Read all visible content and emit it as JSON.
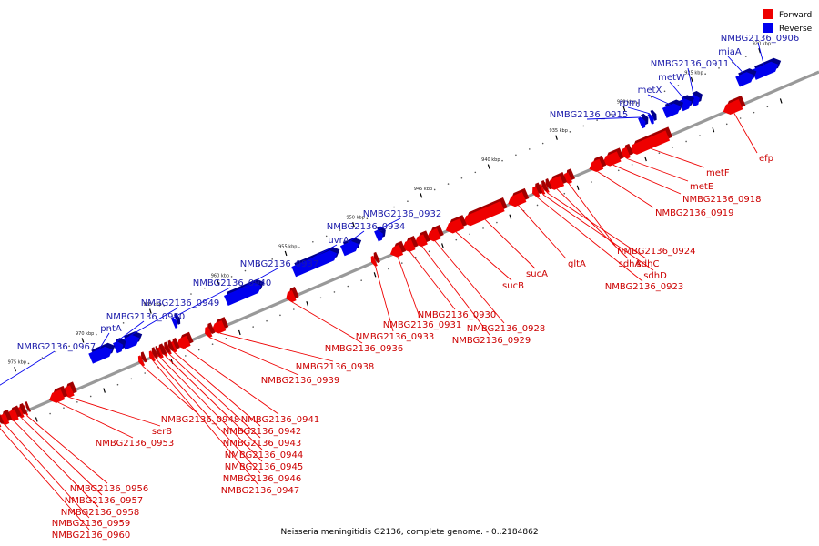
{
  "legend": [
    {
      "label": "Forward",
      "color": "#ee0000"
    },
    {
      "label": "Reverse",
      "color": "#0000ee"
    }
  ],
  "caption": "Neisseria meningitidis G2136, complete genome. - 0..2184862",
  "colors": {
    "forward": "#ee0000",
    "forward_dark": "#a00000",
    "reverse": "#0000ee",
    "reverse_dark": "#00008a",
    "forward_label": "#cc0000",
    "reverse_label": "#1a1aaa",
    "backbone": "#999999"
  },
  "axis": {
    "unit": "kbp",
    "ticks": [
      920,
      925,
      930,
      935,
      940,
      945,
      950,
      955,
      960,
      965,
      970,
      975
    ]
  },
  "reverse_genes": [
    {
      "label": "NMBG2136_0906",
      "start": 919.2,
      "end": 921.0
    },
    {
      "label": "miaA",
      "start": 921.0,
      "end": 922.2
    },
    {
      "label": "NMBG2136_0911",
      "start": 925.0,
      "end": 925.6
    },
    {
      "label": "metW",
      "start": 925.6,
      "end": 926.4
    },
    {
      "label": "metX",
      "start": 926.4,
      "end": 927.6
    },
    {
      "label": "rpmJ",
      "start": 928.4,
      "end": 928.7
    },
    {
      "label": "NMBG2136_0915",
      "start": 929.0,
      "end": 929.4
    },
    {
      "label": "NMBG2136_0932",
      "start": 948.4,
      "end": 948.9
    },
    {
      "label": "NMBG2136_0934",
      "start": 950.2,
      "end": 951.4
    },
    {
      "label": "uvrA",
      "start": 951.8,
      "end": 955.0
    },
    {
      "label": "NMBG2136_0937",
      "start": 957.4,
      "end": 960.0
    },
    {
      "label": "NMBG2136_0940",
      "start": 963.6,
      "end": 963.9
    },
    {
      "label": "NMBG2136_0949",
      "start": 966.4,
      "end": 967.6
    },
    {
      "label": "NMBG2136_0950",
      "start": 967.6,
      "end": 968.2
    },
    {
      "label": "pntA",
      "start": 968.4,
      "end": 970.0
    },
    {
      "label": "NMBG2136_0967",
      "start": 978.8,
      "end": 979.3
    }
  ],
  "forward_genes": [
    {
      "label": "efp",
      "start": 922.6,
      "end": 923.9
    },
    {
      "label": "metF",
      "start": 928.0,
      "end": 930.8
    },
    {
      "label": "metE",
      "start": 930.9,
      "end": 931.4
    },
    {
      "label": "NMBG2136_0918",
      "start": 931.6,
      "end": 932.8
    },
    {
      "label": "NMBG2136_0919",
      "start": 932.9,
      "end": 933.8
    },
    {
      "label": "NMBG2136_0924",
      "start": 935.2,
      "end": 935.7
    },
    {
      "label": "sdhA",
      "start": 935.8,
      "end": 936.9
    },
    {
      "label": "sdhC",
      "start": 936.9,
      "end": 937.2
    },
    {
      "label": "sdhD",
      "start": 937.2,
      "end": 937.5
    },
    {
      "label": "NMBG2136_0923",
      "start": 937.6,
      "end": 938.0
    },
    {
      "label": "gltA",
      "start": 938.6,
      "end": 939.8
    },
    {
      "label": "sucA",
      "start": 940.2,
      "end": 943.1
    },
    {
      "label": "sucB",
      "start": 943.2,
      "end": 944.4
    },
    {
      "label": "NMBG2136_0928",
      "start": 944.9,
      "end": 945.8
    },
    {
      "label": "NMBG2136_0929",
      "start": 945.9,
      "end": 946.7
    },
    {
      "label": "NMBG2136_0930",
      "start": 946.8,
      "end": 947.6
    },
    {
      "label": "NMBG2136_0931",
      "start": 947.7,
      "end": 948.5
    },
    {
      "label": "NMBG2136_0933",
      "start": 949.6,
      "end": 949.9
    },
    {
      "label": "NMBG2136_0936",
      "start": 955.6,
      "end": 956.2
    },
    {
      "label": "NMBG2136_0938",
      "start": 960.8,
      "end": 961.7
    },
    {
      "label": "NMBG2136_0939",
      "start": 961.8,
      "end": 962.2
    },
    {
      "label": "NMBG2136_0941",
      "start": 963.4,
      "end": 964.3
    },
    {
      "label": "NMBG2136_0942",
      "start": 964.4,
      "end": 964.8
    },
    {
      "label": "NMBG2136_0943",
      "start": 964.8,
      "end": 965.1
    },
    {
      "label": "NMBG2136_0944",
      "start": 965.1,
      "end": 965.4
    },
    {
      "label": "NMBG2136_0945",
      "start": 965.4,
      "end": 965.8
    },
    {
      "label": "NMBG2136_0946",
      "start": 965.8,
      "end": 966.0
    },
    {
      "label": "NMBG2136_0947",
      "start": 966.0,
      "end": 966.3
    },
    {
      "label": "NMBG2136_0948",
      "start": 966.8,
      "end": 967.1
    },
    {
      "label": "serB",
      "start": 972.0,
      "end": 972.7
    },
    {
      "label": "NMBG2136_0953",
      "start": 972.7,
      "end": 973.7
    },
    {
      "label": "NMBG2136_0956",
      "start": 975.4,
      "end": 975.6
    },
    {
      "label": "NMBG2136_0957",
      "start": 975.7,
      "end": 976.1
    },
    {
      "label": "NMBG2136_0958",
      "start": 976.1,
      "end": 976.8
    },
    {
      "label": "NMBG2136_0959",
      "start": 976.8,
      "end": 977.4
    },
    {
      "label": "NMBG2136_0960",
      "start": 977.4,
      "end": 977.7
    }
  ]
}
